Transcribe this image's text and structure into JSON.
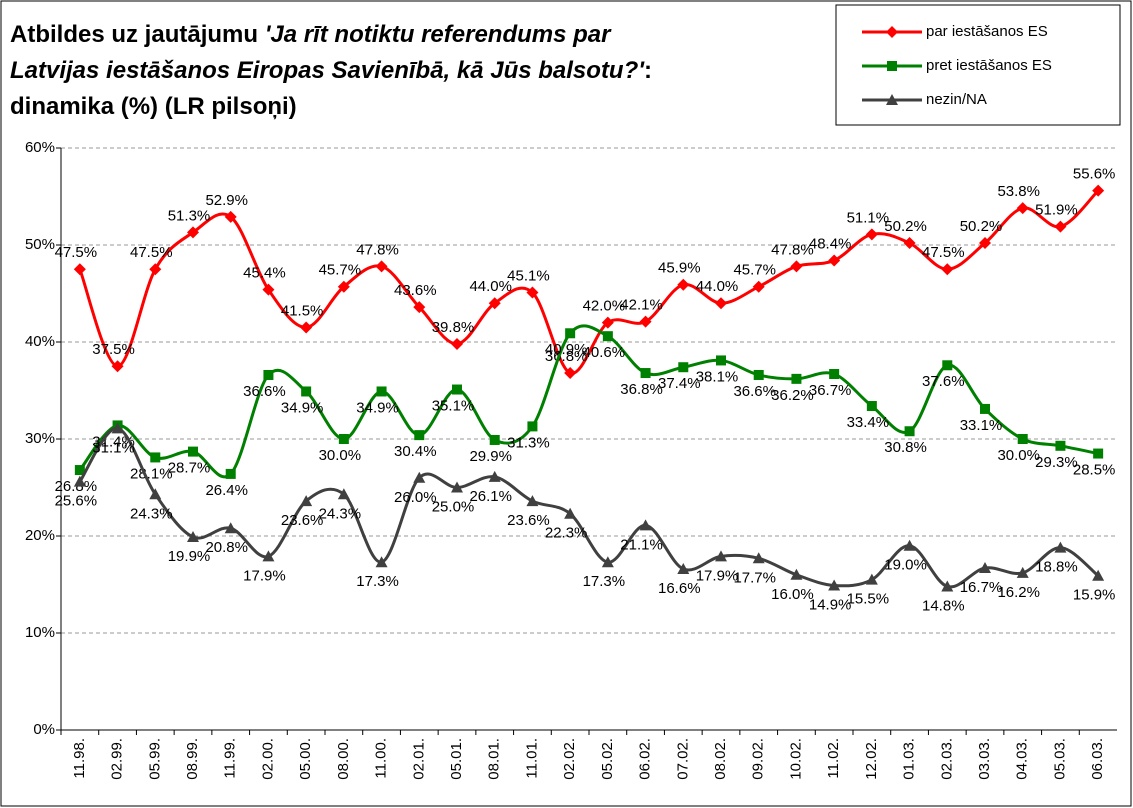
{
  "chart_data": {
    "type": "line",
    "title_lines": [
      [
        {
          "text": "Atbildes uz jautājumu ",
          "italic": false
        },
        {
          "text": "'Ja rīt notiktu referendums par",
          "italic": true
        }
      ],
      [
        {
          "text": "Latvijas iestāšanos Eiropas Savienībā, kā Jūs balsotu?'",
          "italic": true
        },
        {
          "text": ":",
          "italic": false
        }
      ],
      [
        {
          "text": "dinamika (%) (LR pilsoņi)",
          "italic": false
        }
      ]
    ],
    "categories": [
      "11.98.",
      "02.99.",
      "05.99.",
      "08.99.",
      "11.99.",
      "02.00.",
      "05.00.",
      "08.00.",
      "11.00.",
      "02.01.",
      "05.01.",
      "08.01.",
      "11.01.",
      "02.02.",
      "05.02.",
      "06.02.",
      "07.02.",
      "08.02.",
      "09.02.",
      "10.02.",
      "11.02.",
      "12.02.",
      "01.03.",
      "02.03.",
      "03.03.",
      "04.03.",
      "05.03.",
      "06.03."
    ],
    "series": [
      {
        "name": "par iestāšanos ES",
        "color": "#ff0000",
        "marker": "diamond",
        "values": [
          47.5,
          37.5,
          47.5,
          51.3,
          52.9,
          45.4,
          41.5,
          45.7,
          47.8,
          43.6,
          39.8,
          44.0,
          45.1,
          36.8,
          42.0,
          42.1,
          45.9,
          44.0,
          45.7,
          47.8,
          48.4,
          51.1,
          50.2,
          47.5,
          50.2,
          53.8,
          51.9,
          55.6
        ],
        "value_labels": [
          "47.5%",
          "37.5%",
          "47.5%",
          "51.3%",
          "52.9%",
          "45.4%",
          "41.5%",
          "45.7%",
          "47.8%",
          "43.6%",
          "39.8%",
          "44.0%",
          "45.1%",
          "36.8%",
          "42.0%",
          "42.1%",
          "45.9%",
          "44.0%",
          "45.7%",
          "47.8%",
          "48.4%",
          "51.1%",
          "50.2%",
          "47.5%",
          "50.2%",
          "53.8%",
          "51.9%",
          "55.6%"
        ]
      },
      {
        "name": "pret iestāšanos ES",
        "color": "#008000",
        "marker": "square",
        "values": [
          26.8,
          31.4,
          28.1,
          28.7,
          26.4,
          36.6,
          34.9,
          30.0,
          34.9,
          30.4,
          35.1,
          29.9,
          31.3,
          40.9,
          40.6,
          36.8,
          37.4,
          38.1,
          36.6,
          36.2,
          36.7,
          33.4,
          30.8,
          37.6,
          33.1,
          30.0,
          29.3,
          28.5
        ],
        "value_labels": [
          "26.8%",
          "31.4%",
          "28.1%",
          "28.7%",
          "26.4%",
          "36.6%",
          "34.9%",
          "30.0%",
          "34.9%",
          "30.4%",
          "35.1%",
          "29.9%",
          "31.3%",
          "40.9%",
          "40.6%",
          "36.8%",
          "37.4%",
          "38.1%",
          "36.6%",
          "36.2%",
          "36.7%",
          "33.4%",
          "30.8%",
          "37.6%",
          "33.1%",
          "30.0%",
          "29.3%",
          "28.5%"
        ]
      },
      {
        "name": "nezin/NA",
        "color": "#404040",
        "marker": "triangle",
        "values": [
          25.6,
          31.1,
          24.3,
          19.9,
          20.8,
          17.9,
          23.6,
          24.3,
          17.3,
          26.0,
          25.0,
          26.1,
          23.6,
          22.3,
          17.3,
          21.1,
          16.6,
          17.9,
          17.7,
          16.0,
          14.9,
          15.5,
          19.0,
          14.8,
          16.7,
          16.2,
          18.8,
          15.9
        ],
        "value_labels": [
          "25.6%",
          "31.1%",
          "24.3%",
          "19.9%",
          "20.8%",
          "17.9%",
          "23.6%",
          "24.3%",
          "17.3%",
          "26.0%",
          "25.0%",
          "26.1%",
          "23.6%",
          "22.3%",
          "17.3%",
          "21.1%",
          "16.6%",
          "17.9%",
          "17.7%",
          "16.0%",
          "14.9%",
          "15.5%",
          "19.0%",
          "14.8%",
          "16.7%",
          "16.2%",
          "18.8%",
          "15.9%"
        ]
      }
    ],
    "ylim": [
      0,
      60
    ],
    "yticks": [
      {
        "value": 0,
        "label": "0%"
      },
      {
        "value": 10,
        "label": "10%"
      },
      {
        "value": 20,
        "label": "20%"
      },
      {
        "value": 30,
        "label": "30%"
      },
      {
        "value": 40,
        "label": "40%"
      },
      {
        "value": 50,
        "label": "50%"
      },
      {
        "value": 60,
        "label": "60%"
      }
    ],
    "grid": true,
    "legend": "top-right",
    "smooth": true
  }
}
